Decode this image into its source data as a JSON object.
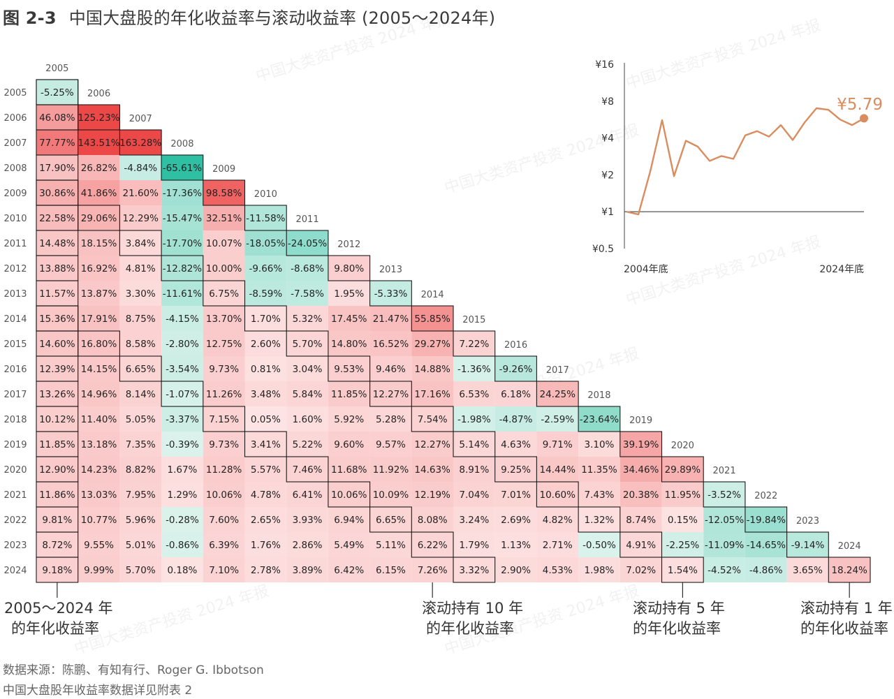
{
  "figure": {
    "number": "图 2-3",
    "title": "中国大盘股的年化收益率与滚动收益率 (2005～2024年)"
  },
  "watermark": "中国大类资产投资 2024 年报",
  "colors": {
    "pos_max": "#ec4848",
    "pos_light": "#fde3e3",
    "neg_max": "#2fbfa3",
    "neg_light": "#ddf3ec",
    "line": "#d98c5f",
    "text": "#333333"
  },
  "chart_data": [
    {
      "type": "heatmap",
      "title": "",
      "units": "annualized return (%)",
      "rows_are": "end year",
      "columns_are": "start year",
      "years": [
        2005,
        2006,
        2007,
        2008,
        2009,
        2010,
        2011,
        2012,
        2013,
        2014,
        2015,
        2016,
        2017,
        2018,
        2019,
        2020,
        2021,
        2022,
        2023,
        2024
      ],
      "values": [
        [
          -5.25
        ],
        [
          46.08,
          125.23
        ],
        [
          77.77,
          143.51,
          163.28
        ],
        [
          17.9,
          26.82,
          -4.84,
          -65.61
        ],
        [
          30.86,
          41.86,
          21.6,
          -17.36,
          98.58
        ],
        [
          22.58,
          29.06,
          12.29,
          -15.47,
          32.51,
          -11.58
        ],
        [
          14.48,
          18.15,
          3.84,
          -17.7,
          10.07,
          -18.05,
          -24.05
        ],
        [
          13.88,
          16.92,
          4.81,
          -12.82,
          10.0,
          -9.66,
          -8.68,
          9.8
        ],
        [
          11.57,
          13.87,
          3.3,
          -11.61,
          6.75,
          -8.59,
          -7.58,
          1.95,
          -5.33
        ],
        [
          15.36,
          17.91,
          8.75,
          -4.15,
          13.7,
          1.7,
          5.32,
          17.45,
          21.47,
          55.85
        ],
        [
          14.6,
          16.8,
          8.58,
          -2.8,
          12.75,
          2.6,
          5.7,
          14.8,
          16.52,
          29.27,
          7.22
        ],
        [
          12.39,
          14.15,
          6.65,
          -3.54,
          9.73,
          0.81,
          3.04,
          9.53,
          9.46,
          14.88,
          -1.36,
          -9.26
        ],
        [
          13.26,
          14.96,
          8.14,
          -1.07,
          11.26,
          3.48,
          5.84,
          11.85,
          12.27,
          17.16,
          6.53,
          6.18,
          24.25
        ],
        [
          10.12,
          11.4,
          5.05,
          -3.37,
          7.15,
          0.05,
          1.6,
          5.92,
          5.28,
          7.54,
          -1.98,
          -4.87,
          -2.59,
          -23.64
        ],
        [
          11.85,
          13.18,
          7.35,
          -0.39,
          9.73,
          3.41,
          5.22,
          9.6,
          9.57,
          12.27,
          5.14,
          4.63,
          9.71,
          3.1,
          39.19
        ],
        [
          12.9,
          14.23,
          8.82,
          1.67,
          11.28,
          5.57,
          7.46,
          11.68,
          11.92,
          14.63,
          8.91,
          9.25,
          14.44,
          11.35,
          34.46,
          29.89
        ],
        [
          11.86,
          13.03,
          7.95,
          1.29,
          10.06,
          4.78,
          6.41,
          10.06,
          10.09,
          12.19,
          7.04,
          7.01,
          10.6,
          7.43,
          20.38,
          11.95,
          -3.52
        ],
        [
          9.81,
          10.77,
          5.96,
          -0.28,
          7.6,
          2.65,
          3.93,
          6.94,
          6.65,
          8.08,
          3.24,
          2.69,
          4.82,
          1.32,
          8.74,
          0.15,
          -12.05,
          -19.84
        ],
        [
          8.72,
          9.55,
          5.01,
          -0.86,
          6.39,
          1.76,
          2.86,
          5.49,
          5.11,
          6.22,
          1.79,
          1.13,
          2.71,
          -0.5,
          4.91,
          -2.25,
          -11.09,
          -14.65,
          -9.14
        ],
        [
          9.18,
          9.99,
          5.7,
          0.18,
          7.1,
          2.78,
          3.89,
          6.42,
          6.15,
          7.26,
          3.32,
          2.9,
          4.53,
          1.98,
          7.02,
          1.54,
          -4.52,
          -4.86,
          3.65,
          18.24
        ]
      ],
      "outlined_bands": {
        "first_column": "2005～2024 年的年化收益率",
        "rolling_10y": "滚动持有 10 年的年化收益率",
        "rolling_5y": "滚动持有 5 年的年化收益率",
        "rolling_1y": "滚动持有 1 年的年化收益率"
      }
    },
    {
      "type": "line",
      "title": "",
      "scale": "log",
      "x_start_label": "2004年底",
      "x_end_label": "2024年底",
      "x": [
        2004,
        2005,
        2006,
        2007,
        2008,
        2009,
        2010,
        2011,
        2012,
        2013,
        2014,
        2015,
        2016,
        2017,
        2018,
        2019,
        2020,
        2021,
        2022,
        2023,
        2024
      ],
      "y": [
        1.0,
        0.95,
        2.13,
        5.6,
        1.95,
        3.8,
        3.4,
        2.6,
        2.85,
        2.7,
        4.2,
        4.55,
        4.1,
        5.1,
        3.85,
        5.35,
        7.0,
        6.8,
        5.65,
        5.1,
        5.79
      ],
      "y_ticks": [
        "¥16",
        "¥8",
        "¥4",
        "¥2",
        "¥1",
        "¥0.5"
      ],
      "end_label": "¥5.79",
      "ylim": [
        0.5,
        16
      ]
    }
  ],
  "bottom_labels": {
    "first_column": [
      "2005～2024 年",
      "的年化收益率"
    ],
    "rolling_10y": [
      "滚动持有 10 年",
      "的年化收益率"
    ],
    "rolling_5y": [
      "滚动持有 5 年",
      "的年化收益率"
    ],
    "rolling_1y": [
      "滚动持有 1 年",
      "的年化收益率"
    ]
  },
  "sources": {
    "line1": "数据来源：陈鹏、有知有行、Roger G. Ibbotson",
    "line2": "中国大盘股年收益率数据详见附表 2"
  }
}
